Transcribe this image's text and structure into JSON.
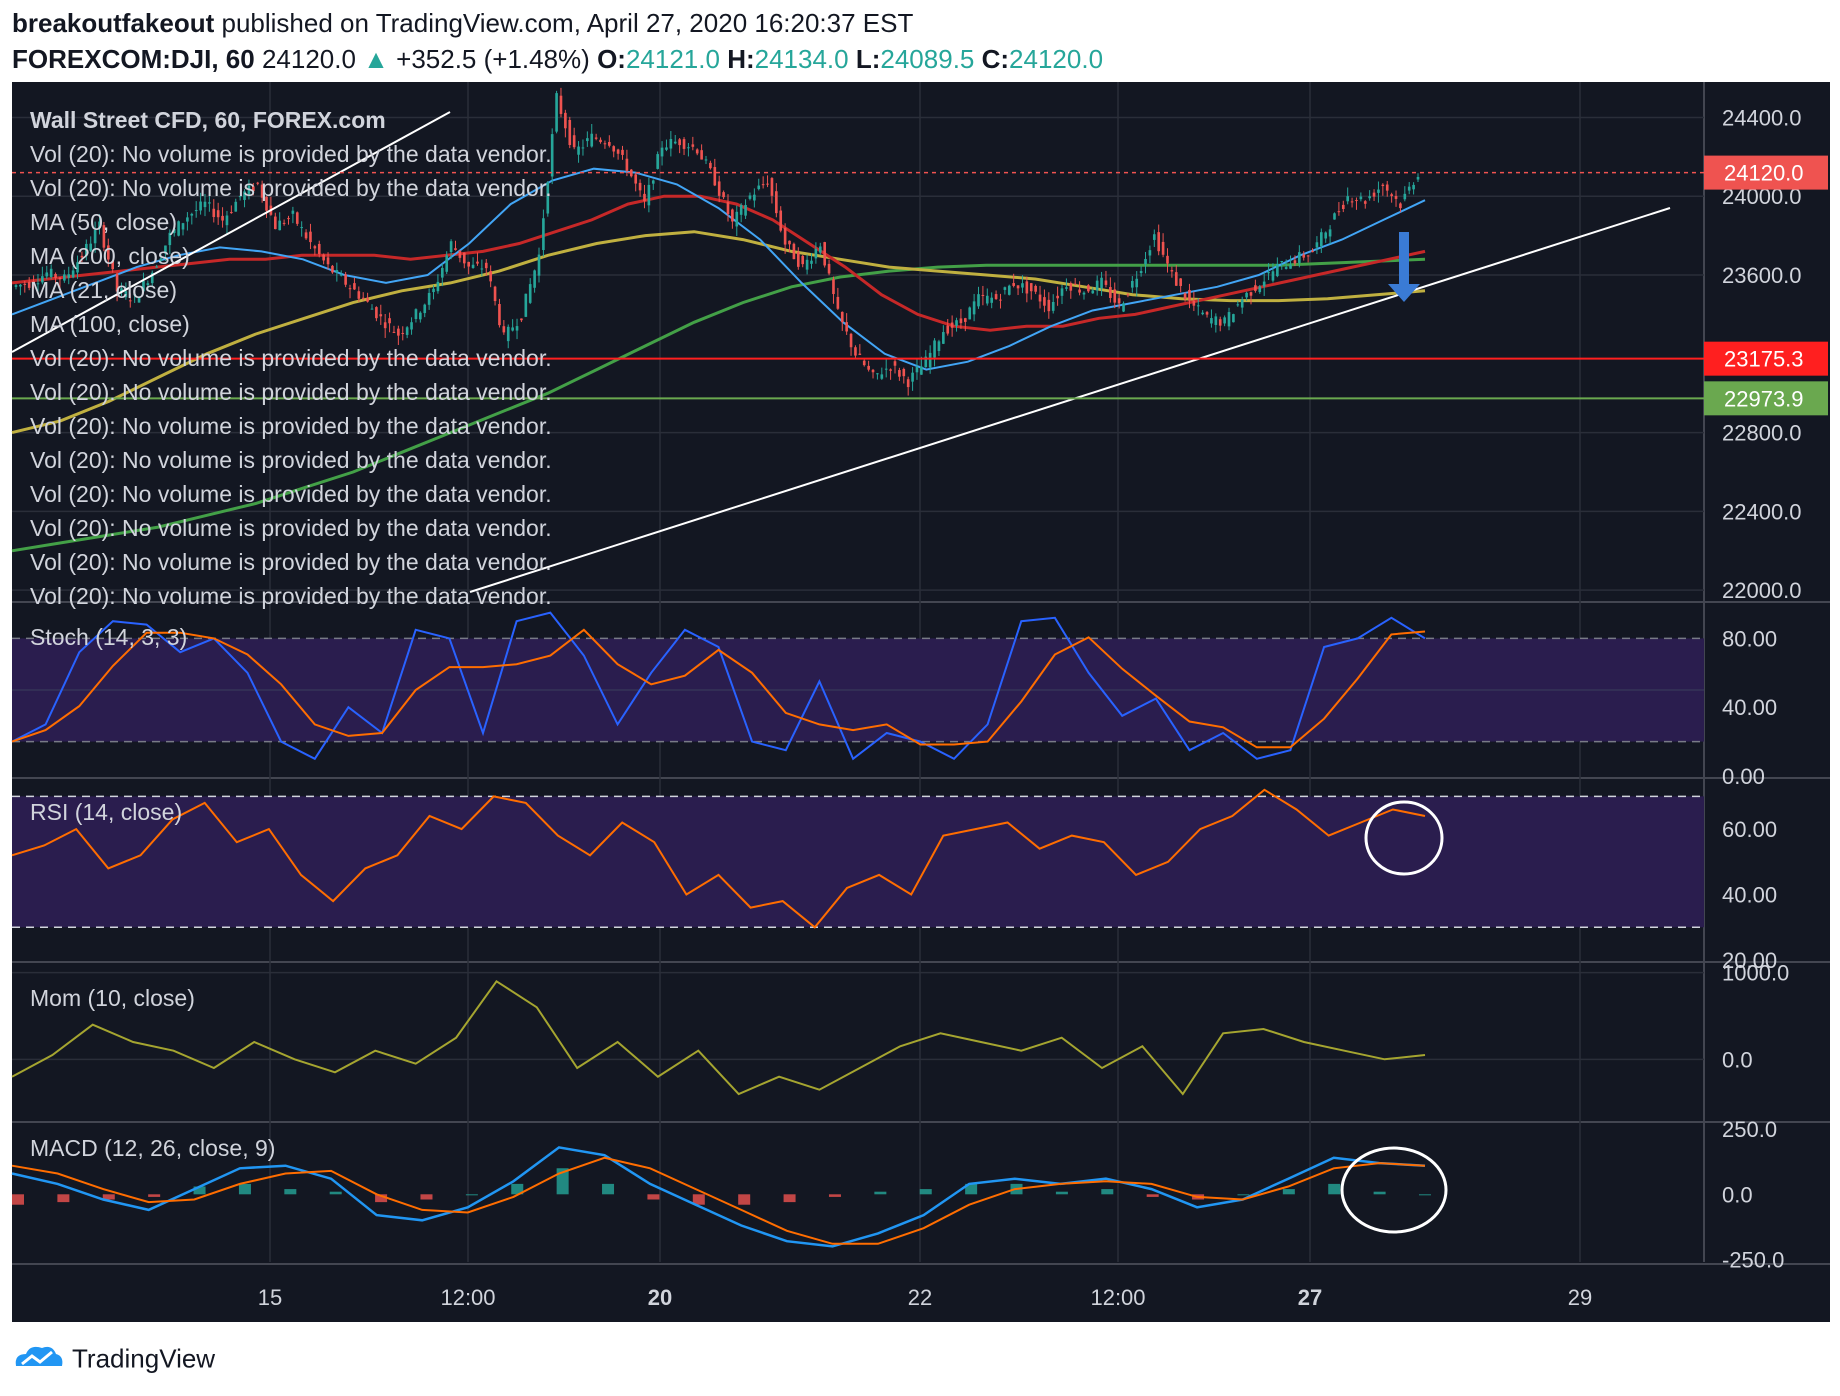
{
  "header": {
    "author": "breakoutfakeout",
    "published": "published on TradingView.com, April 27, 2020 16:20:37 EST",
    "symbol": "FOREXCOM:DJI, 60",
    "last": "24120.0",
    "change": "+352.5 (+1.48%)",
    "o_label": "O:",
    "o": "24121.0",
    "h_label": "H:",
    "h": "24134.0",
    "l_label": "L:",
    "l": "24089.5",
    "c_label": "C:",
    "c": "24120.0"
  },
  "legend": {
    "title": "Wall Street CFD, 60, FOREX.com",
    "lines": [
      "Vol (20): No volume is provided by the data vendor.",
      "Vol (20): No volume is provided by the data vendor.",
      "MA (50, close)",
      "MA (200, close)",
      "MA (21, close)",
      "MA (100, close)",
      "Vol (20): No volume is provided by the data vendor.",
      "Vol (20): No volume is provided by the data vendor.",
      "Vol (20): No volume is provided by the data vendor.",
      "Vol (20): No volume is provided by the data vendor.",
      "Vol (20): No volume is provided by the data vendor.",
      "Vol (20): No volume is provided by the data vendor.",
      "Vol (20): No volume is provided by the data vendor.",
      "Vol (20): No volume is provided by the data vendor."
    ]
  },
  "colors": {
    "background": "#131722",
    "grid": "#2a2e39",
    "text": "#d1d4dc",
    "up": "#26a69a",
    "down": "#ef5350",
    "ma50": "#c62828",
    "ma200": "#43a047",
    "ma21": "#42a5f5",
    "ma100": "#c0b040",
    "stoch_k": "#2962ff",
    "stoch_d": "#ff6d00",
    "band": "#2a1d4e",
    "rsi": "#ff6d00",
    "mom": "#a5a530",
    "macd": "#2196f3",
    "signal": "#ff6d00"
  },
  "chart_data": {
    "type": "candlestick",
    "title": "Wall Street CFD, 60, FOREX.com",
    "x_axis": {
      "ticks": [
        "15",
        "12:00",
        "20",
        "22",
        "12:00",
        "27",
        "29"
      ]
    },
    "price": {
      "ylim": [
        21950,
        24580
      ],
      "ticks": [
        24400.0,
        24000.0,
        23600.0,
        22800.0,
        22400.0,
        22000.0
      ],
      "current_price": 24120.0,
      "horizontal_levels": [
        {
          "value": 23175.3,
          "color": "#ff1f1f"
        },
        {
          "value": 22973.9,
          "color": "#6aa84f"
        }
      ],
      "close_path": [
        23540,
        23560,
        23610,
        23580,
        23700,
        23850,
        23520,
        23480,
        23620,
        23800,
        23900,
        23960,
        23880,
        24000,
        24060,
        23850,
        23900,
        23760,
        23640,
        23560,
        23480,
        23380,
        23300,
        23400,
        23520,
        23760,
        23640,
        23640,
        23280,
        23400,
        23700,
        24500,
        24220,
        24300,
        24280,
        24150,
        23960,
        24260,
        24280,
        24240,
        24080,
        23860,
        24000,
        24080,
        23760,
        23640,
        23760,
        23400,
        23200,
        23080,
        23140,
        23060,
        23160,
        23320,
        23360,
        23480,
        23480,
        23560,
        23520,
        23440,
        23560,
        23520,
        23560,
        23440,
        23600,
        23800,
        23600,
        23460,
        23380,
        23360,
        23480,
        23560,
        23640,
        23680,
        23720,
        23860,
        24000,
        23980,
        24060,
        23960,
        24120
      ],
      "ma50": [
        23560,
        23580,
        23600,
        23620,
        23640,
        23660,
        23680,
        23680,
        23700,
        23700,
        23700,
        23680,
        23700,
        23720,
        23760,
        23820,
        23880,
        23960,
        24000,
        24000,
        23960,
        23880,
        23760,
        23640,
        23500,
        23400,
        23340,
        23320,
        23340,
        23340,
        23380,
        23400,
        23440,
        23480,
        23520,
        23560,
        23600,
        23640,
        23680,
        23720
      ],
      "ma200": [
        22200,
        22240,
        22280,
        22320,
        22380,
        22440,
        22520,
        22600,
        22700,
        22800,
        22900,
        23000,
        23120,
        23240,
        23360,
        23460,
        23540,
        23590,
        23620,
        23640,
        23650,
        23650,
        23650,
        23650,
        23650,
        23650,
        23650,
        23660,
        23670,
        23680
      ],
      "ma21": [
        23400,
        23480,
        23560,
        23640,
        23700,
        23740,
        23720,
        23680,
        23600,
        23560,
        23600,
        23760,
        23960,
        24080,
        24140,
        24120,
        24060,
        23940,
        23780,
        23560,
        23360,
        23200,
        23120,
        23160,
        23240,
        23340,
        23420,
        23460,
        23500,
        23540,
        23600,
        23700,
        23780,
        23880,
        23980
      ],
      "ma100": [
        22800,
        22860,
        22960,
        23080,
        23200,
        23300,
        23380,
        23460,
        23520,
        23560,
        23620,
        23700,
        23760,
        23800,
        23820,
        23780,
        23720,
        23680,
        23640,
        23620,
        23600,
        23580,
        23540,
        23500,
        23480,
        23470,
        23470,
        23480,
        23500,
        23520
      ]
    },
    "stoch": {
      "title": "Stoch (14, 3, 3)",
      "ylim": [
        0,
        100
      ],
      "ticks": [
        80.0,
        40.0,
        0.0
      ],
      "band": [
        20,
        80
      ],
      "k": [
        20,
        30,
        72,
        90,
        88,
        72,
        80,
        60,
        20,
        10,
        40,
        25,
        85,
        80,
        25,
        90,
        95,
        70,
        30,
        60,
        85,
        75,
        20,
        15,
        55,
        10,
        25,
        20,
        10,
        30,
        90,
        92,
        60,
        35,
        45,
        15,
        25,
        10,
        15,
        75,
        80,
        92,
        80
      ]
    },
    "rsi": {
      "title": "RSI (14, close)",
      "ylim": [
        20,
        75
      ],
      "ticks": [
        60.0,
        40.0,
        20.0
      ],
      "band": [
        30,
        70
      ],
      "values": [
        52,
        55,
        60,
        48,
        52,
        63,
        68,
        56,
        60,
        46,
        38,
        48,
        52,
        64,
        60,
        70,
        68,
        58,
        52,
        62,
        56,
        40,
        46,
        36,
        38,
        30,
        42,
        46,
        40,
        58,
        60,
        62,
        54,
        58,
        56,
        46,
        50,
        60,
        64,
        72,
        66,
        58,
        62,
        66,
        64
      ]
    },
    "momentum": {
      "title": "Mom (10, close)",
      "ylim": [
        -700,
        1100
      ],
      "ticks": [
        1000.0,
        0.0
      ],
      "values": [
        -200,
        50,
        400,
        200,
        100,
        -100,
        200,
        0,
        -150,
        100,
        -50,
        250,
        900,
        600,
        -100,
        200,
        -200,
        100,
        -400,
        -200,
        -350,
        -100,
        150,
        300,
        200,
        100,
        250,
        -100,
        150,
        -400,
        300,
        350,
        200,
        100,
        0,
        50
      ]
    },
    "macd": {
      "title": "MACD (12, 26, close, 9)",
      "ylim": [
        -260,
        270
      ],
      "ticks": [
        250.0,
        0.0,
        -250.0
      ],
      "macd": [
        80,
        40,
        -20,
        -60,
        20,
        100,
        110,
        60,
        -80,
        -100,
        -50,
        50,
        180,
        150,
        40,
        -40,
        -120,
        -180,
        -200,
        -150,
        -80,
        40,
        60,
        40,
        60,
        20,
        -50,
        -20,
        60,
        140,
        120,
        110
      ],
      "signal": [
        110,
        80,
        20,
        -30,
        -20,
        40,
        80,
        90,
        0,
        -60,
        -70,
        -10,
        80,
        140,
        100,
        20,
        -60,
        -140,
        -190,
        -190,
        -130,
        -40,
        20,
        40,
        50,
        40,
        -10,
        -20,
        30,
        100,
        120,
        110
      ],
      "hist": [
        -40,
        -30,
        -20,
        -10,
        30,
        40,
        20,
        10,
        -30,
        -20,
        0,
        40,
        100,
        40,
        -20,
        -40,
        -40,
        -30,
        -10,
        10,
        20,
        40,
        40,
        10,
        20,
        -10,
        -20,
        0,
        20,
        40,
        10,
        0
      ]
    }
  },
  "footer": {
    "brand": "TradingView"
  }
}
